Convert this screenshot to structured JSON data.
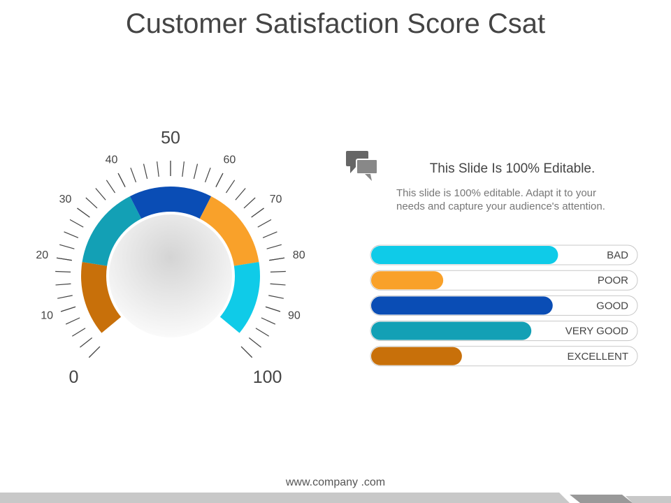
{
  "title": "Customer Satisfaction Score Csat",
  "chart_data": [
    {
      "type": "gauge",
      "range": [
        0,
        100
      ],
      "ticks": [
        0,
        10,
        20,
        30,
        40,
        50,
        60,
        70,
        80,
        90,
        100
      ],
      "segments": [
        {
          "from": 2,
          "to": 20,
          "color": "#c8700a"
        },
        {
          "from": 20,
          "to": 40,
          "color": "#13a0b5"
        },
        {
          "from": 40,
          "to": 60,
          "color": "#0a4db5"
        },
        {
          "from": 60,
          "to": 80,
          "color": "#f9a12a"
        },
        {
          "from": 80,
          "to": 98,
          "color": "#0fcbe8"
        }
      ]
    },
    {
      "type": "progress",
      "xlim": [
        0,
        100
      ],
      "categories": [
        "BAD",
        "POOR",
        "GOOD",
        "VERY GOOD",
        "EXCELLENT"
      ],
      "values": [
        70,
        27,
        68,
        60,
        34
      ],
      "colors": [
        "#0fcbe8",
        "#f9a12a",
        "#0a4db5",
        "#13a0b5",
        "#c8700a"
      ]
    }
  ],
  "text_box": {
    "heading": "This Slide Is 100% Editable.",
    "body": "This slide is 100% editable. Adapt it to your needs and capture your audience's attention."
  },
  "footer": "www.company .com"
}
